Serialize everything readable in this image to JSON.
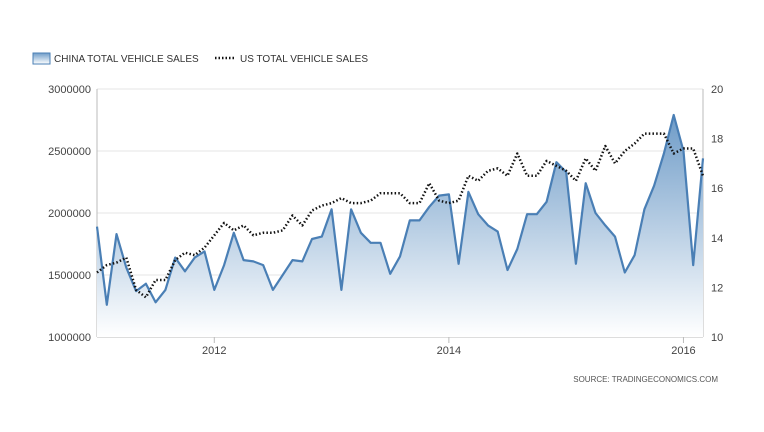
{
  "chart_data": {
    "type": "area",
    "series": [
      {
        "name": "CHINA TOTAL VEHICLE SALES",
        "axis": "left",
        "style": "area",
        "color": "#4a7fb5",
        "x": [
          "2011-01",
          "2011-02",
          "2011-03",
          "2011-04",
          "2011-05",
          "2011-06",
          "2011-07",
          "2011-08",
          "2011-09",
          "2011-10",
          "2011-11",
          "2011-12",
          "2012-01",
          "2012-02",
          "2012-03",
          "2012-04",
          "2012-05",
          "2012-06",
          "2012-07",
          "2012-08",
          "2012-09",
          "2012-10",
          "2012-11",
          "2012-12",
          "2013-01",
          "2013-02",
          "2013-03",
          "2013-04",
          "2013-05",
          "2013-06",
          "2013-07",
          "2013-08",
          "2013-09",
          "2013-10",
          "2013-11",
          "2013-12",
          "2014-01",
          "2014-02",
          "2014-03",
          "2014-04",
          "2014-05",
          "2014-06",
          "2014-07",
          "2014-08",
          "2014-09",
          "2014-10",
          "2014-11",
          "2014-12",
          "2015-01",
          "2015-02",
          "2015-03",
          "2015-04",
          "2015-05",
          "2015-06",
          "2015-07",
          "2015-08",
          "2015-09",
          "2015-10",
          "2015-11",
          "2015-12",
          "2016-01",
          "2016-02",
          "2016-03"
        ],
        "values": [
          1890000,
          1260000,
          1830000,
          1560000,
          1370000,
          1430000,
          1280000,
          1380000,
          1640000,
          1530000,
          1640000,
          1690000,
          1380000,
          1580000,
          1840000,
          1620000,
          1610000,
          1580000,
          1380000,
          1500000,
          1620000,
          1610000,
          1790000,
          1810000,
          2030000,
          1380000,
          2030000,
          1840000,
          1760000,
          1760000,
          1510000,
          1650000,
          1940000,
          1940000,
          2050000,
          2140000,
          2150000,
          1590000,
          2170000,
          1990000,
          1900000,
          1850000,
          1540000,
          1710000,
          1990000,
          1990000,
          2090000,
          2410000,
          2330000,
          1590000,
          2240000,
          2000000,
          1900000,
          1810000,
          1520000,
          1660000,
          2030000,
          2220000,
          2480000,
          2790000,
          2500000,
          1580000,
          2440000
        ]
      },
      {
        "name": "US TOTAL VEHICLE SALES",
        "axis": "right",
        "style": "dotted-line",
        "color": "#111111",
        "x": [
          "2011-01",
          "2011-02",
          "2011-03",
          "2011-04",
          "2011-05",
          "2011-06",
          "2011-07",
          "2011-08",
          "2011-09",
          "2011-10",
          "2011-11",
          "2011-12",
          "2012-01",
          "2012-02",
          "2012-03",
          "2012-04",
          "2012-05",
          "2012-06",
          "2012-07",
          "2012-08",
          "2012-09",
          "2012-10",
          "2012-11",
          "2012-12",
          "2013-01",
          "2013-02",
          "2013-03",
          "2013-04",
          "2013-05",
          "2013-06",
          "2013-07",
          "2013-08",
          "2013-09",
          "2013-10",
          "2013-11",
          "2013-12",
          "2014-01",
          "2014-02",
          "2014-03",
          "2014-04",
          "2014-05",
          "2014-06",
          "2014-07",
          "2014-08",
          "2014-09",
          "2014-10",
          "2014-11",
          "2014-12",
          "2015-01",
          "2015-02",
          "2015-03",
          "2015-04",
          "2015-05",
          "2015-06",
          "2015-07",
          "2015-08",
          "2015-09",
          "2015-10",
          "2015-11",
          "2015-12",
          "2016-01",
          "2016-02",
          "2016-03"
        ],
        "values": [
          12.6,
          12.9,
          13.0,
          13.2,
          11.9,
          11.6,
          12.3,
          12.3,
          13.1,
          13.4,
          13.3,
          13.6,
          14.1,
          14.6,
          14.3,
          14.5,
          14.1,
          14.2,
          14.2,
          14.3,
          14.9,
          14.5,
          15.1,
          15.3,
          15.4,
          15.6,
          15.4,
          15.4,
          15.5,
          15.8,
          15.8,
          15.8,
          15.4,
          15.4,
          16.2,
          15.5,
          15.4,
          15.5,
          16.5,
          16.3,
          16.7,
          16.8,
          16.5,
          17.4,
          16.5,
          16.5,
          17.1,
          16.9,
          16.7,
          16.3,
          17.2,
          16.7,
          17.7,
          17.0,
          17.5,
          17.8,
          18.2,
          18.2,
          18.2,
          17.4,
          17.6,
          17.6,
          16.5
        ]
      }
    ],
    "y_left": {
      "ylim": [
        1000000,
        3000000
      ],
      "ticks": [
        "3000000",
        "2500000",
        "2000000",
        "1500000",
        "1000000"
      ]
    },
    "y_right": {
      "ylim": [
        10,
        20
      ],
      "ticks": [
        "20",
        "18",
        "16",
        "14",
        "12",
        "10"
      ]
    },
    "x_axis": {
      "range": [
        "2011-01",
        "2016-03"
      ],
      "ticks": [
        {
          "label": "2012",
          "at": "2012-01"
        },
        {
          "label": "2014",
          "at": "2014-01"
        },
        {
          "label": "2016",
          "at": "2016-01"
        }
      ]
    },
    "grid": "horizontal",
    "legend": "top-left",
    "source": "SOURCE: TRADINGECONOMICS.COM",
    "area_gradient": [
      "#6f9cc8",
      "#ffffff"
    ],
    "grid_color": "#e6e6e6",
    "axis_color": "#bbbbbb"
  }
}
